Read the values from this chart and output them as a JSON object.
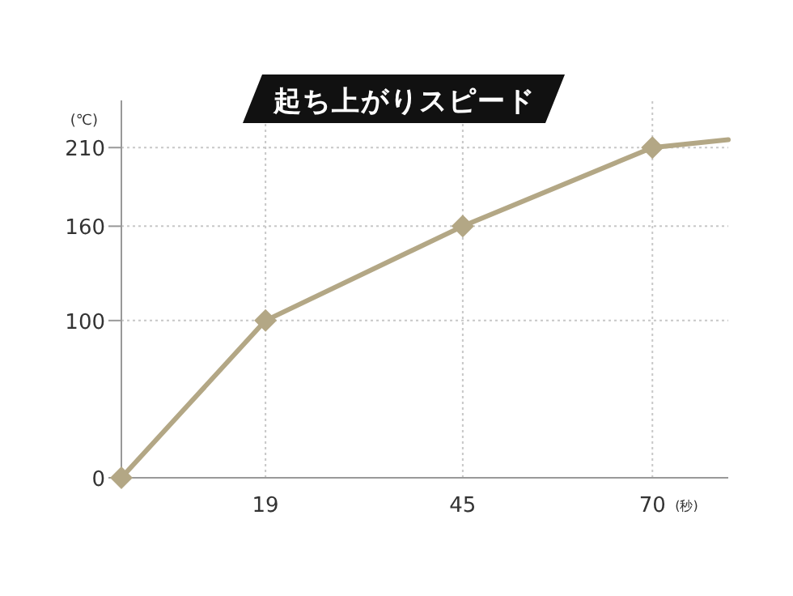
{
  "chart_data": {
    "type": "line",
    "title": "起ち上がりスピード",
    "ylabel": "(℃)",
    "xlabel": "(秒)",
    "xlim": [
      0,
      80
    ],
    "ylim": [
      0,
      240
    ],
    "xticks": [
      19,
      45,
      70
    ],
    "yticks": [
      0,
      100,
      160,
      210
    ],
    "grid": true,
    "series": [
      {
        "color": "#b3a785",
        "x": [
          0,
          19,
          45,
          70
        ],
        "values": [
          0,
          100,
          160,
          210
        ],
        "marker": "diamond"
      },
      {
        "color": "#b3a785",
        "x": [
          70,
          80
        ],
        "values": [
          210,
          215
        ],
        "marker": "none"
      }
    ]
  }
}
